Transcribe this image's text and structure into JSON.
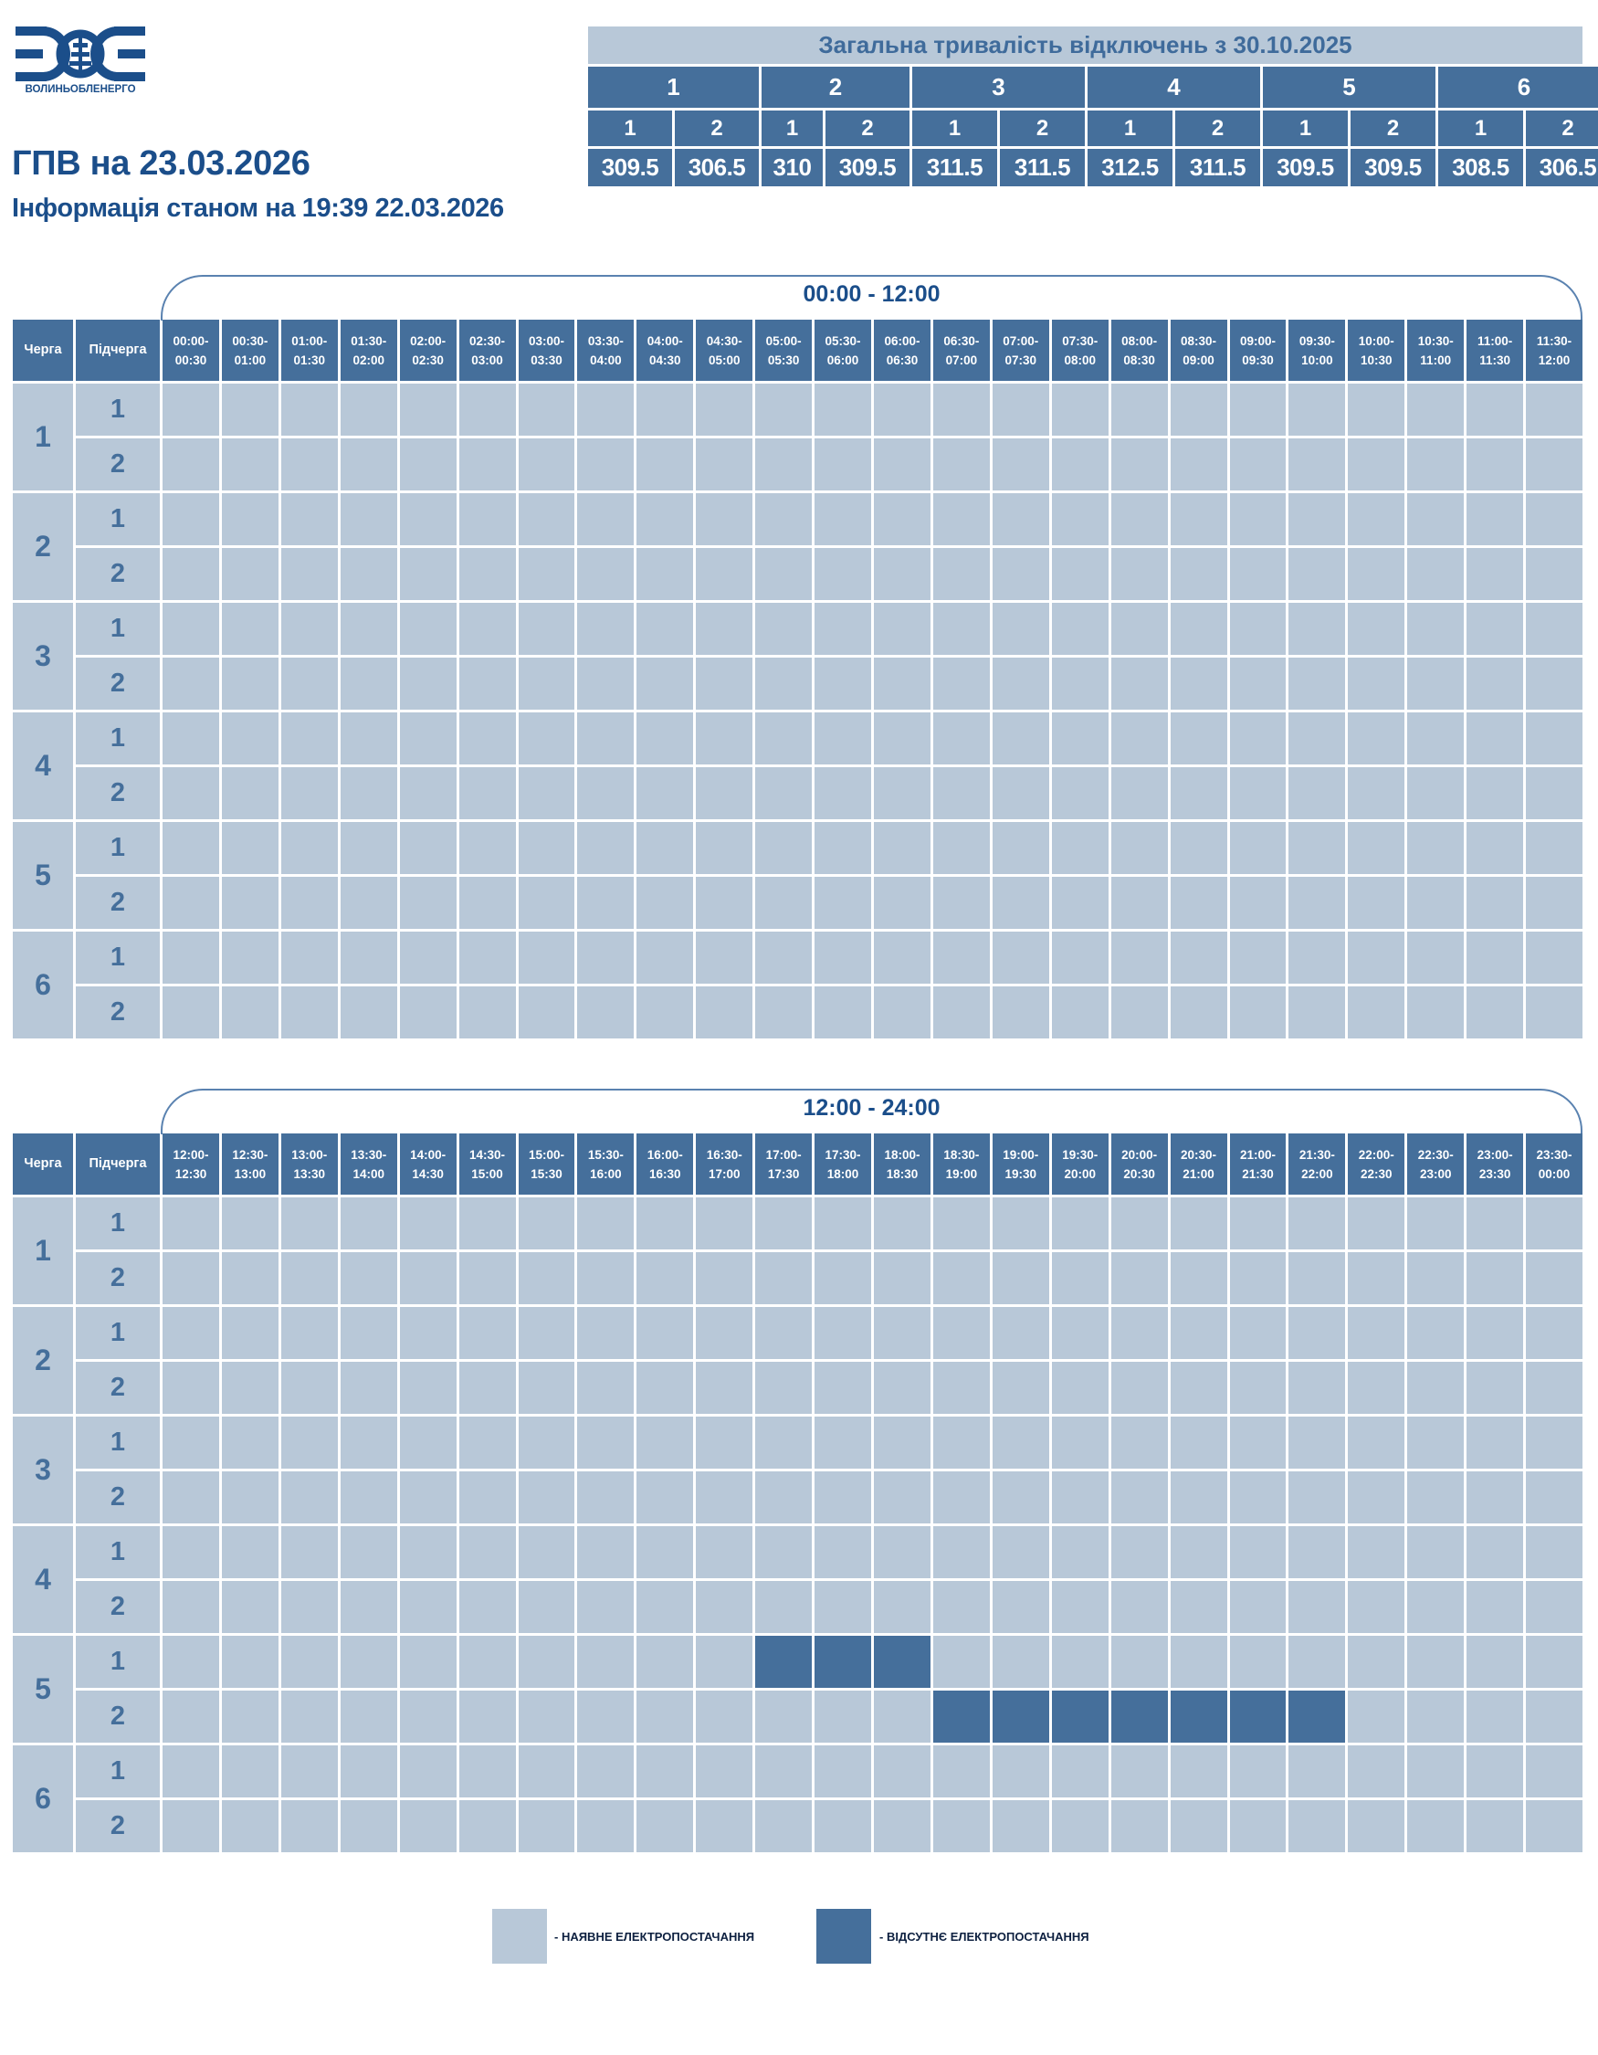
{
  "logo": {
    "text": "ВОЛИНЬОБЛЕНЕРГО"
  },
  "header": {
    "title": "ГПВ на 23.03.2026",
    "subtitle": "Інформація станом на 19:39 22.03.2026"
  },
  "totals": {
    "title": "Загальна тривалість відключень з 30.10.2025",
    "groups": [
      {
        "queue": "1",
        "subs": [
          {
            "sub": "1",
            "value": "309.5"
          },
          {
            "sub": "2",
            "value": "306.5"
          }
        ]
      },
      {
        "queue": "2",
        "subs": [
          {
            "sub": "1",
            "value": "310"
          },
          {
            "sub": "2",
            "value": "309.5"
          }
        ]
      },
      {
        "queue": "3",
        "subs": [
          {
            "sub": "1",
            "value": "311.5"
          },
          {
            "sub": "2",
            "value": "311.5"
          }
        ]
      },
      {
        "queue": "4",
        "subs": [
          {
            "sub": "1",
            "value": "312.5"
          },
          {
            "sub": "2",
            "value": "311.5"
          }
        ]
      },
      {
        "queue": "5",
        "subs": [
          {
            "sub": "1",
            "value": "309.5"
          },
          {
            "sub": "2",
            "value": "309.5"
          }
        ]
      },
      {
        "queue": "6",
        "subs": [
          {
            "sub": "1",
            "value": "308.5"
          },
          {
            "sub": "2",
            "value": "306.5"
          }
        ]
      }
    ]
  },
  "colors": {
    "power_on": "#b8c8d8",
    "power_off": "#456f9b",
    "title": "#1b4e8a"
  },
  "schedule_tables": [
    {
      "range_label": "00:00 - 12:00",
      "queue_header": "Черга",
      "subqueue_header": "Підчерга",
      "slots": [
        "00:00-00:30",
        "00:30-01:00",
        "01:00-01:30",
        "01:30-02:00",
        "02:00-02:30",
        "02:30-03:00",
        "03:00-03:30",
        "03:30-04:00",
        "04:00-04:30",
        "04:30-05:00",
        "05:00-05:30",
        "05:30-06:00",
        "06:00-06:30",
        "06:30-07:00",
        "07:00-07:30",
        "07:30-08:00",
        "08:00-08:30",
        "08:30-09:00",
        "09:00-09:30",
        "09:30-10:00",
        "10:00-10:30",
        "10:30-11:00",
        "11:00-11:30",
        "11:30-12:00"
      ],
      "queues": [
        {
          "queue": "1",
          "subqueues": [
            {
              "sub": "1",
              "outages": []
            },
            {
              "sub": "2",
              "outages": []
            }
          ]
        },
        {
          "queue": "2",
          "subqueues": [
            {
              "sub": "1",
              "outages": []
            },
            {
              "sub": "2",
              "outages": []
            }
          ]
        },
        {
          "queue": "3",
          "subqueues": [
            {
              "sub": "1",
              "outages": []
            },
            {
              "sub": "2",
              "outages": []
            }
          ]
        },
        {
          "queue": "4",
          "subqueues": [
            {
              "sub": "1",
              "outages": []
            },
            {
              "sub": "2",
              "outages": []
            }
          ]
        },
        {
          "queue": "5",
          "subqueues": [
            {
              "sub": "1",
              "outages": []
            },
            {
              "sub": "2",
              "outages": []
            }
          ]
        },
        {
          "queue": "6",
          "subqueues": [
            {
              "sub": "1",
              "outages": []
            },
            {
              "sub": "2",
              "outages": []
            }
          ]
        }
      ]
    },
    {
      "range_label": "12:00 - 24:00",
      "queue_header": "Черга",
      "subqueue_header": "Підчерга",
      "slots": [
        "12:00-12:30",
        "12:30-13:00",
        "13:00-13:30",
        "13:30-14:00",
        "14:00-14:30",
        "14:30-15:00",
        "15:00-15:30",
        "15:30-16:00",
        "16:00-16:30",
        "16:30-17:00",
        "17:00-17:30",
        "17:30-18:00",
        "18:00-18:30",
        "18:30-19:00",
        "19:00-19:30",
        "19:30-20:00",
        "20:00-20:30",
        "20:30-21:00",
        "21:00-21:30",
        "21:30-22:00",
        "22:00-22:30",
        "22:30-23:00",
        "23:00-23:30",
        "23:30-00:00"
      ],
      "queues": [
        {
          "queue": "1",
          "subqueues": [
            {
              "sub": "1",
              "outages": []
            },
            {
              "sub": "2",
              "outages": []
            }
          ]
        },
        {
          "queue": "2",
          "subqueues": [
            {
              "sub": "1",
              "outages": []
            },
            {
              "sub": "2",
              "outages": []
            }
          ]
        },
        {
          "queue": "3",
          "subqueues": [
            {
              "sub": "1",
              "outages": []
            },
            {
              "sub": "2",
              "outages": []
            }
          ]
        },
        {
          "queue": "4",
          "subqueues": [
            {
              "sub": "1",
              "outages": []
            },
            {
              "sub": "2",
              "outages": []
            }
          ]
        },
        {
          "queue": "5",
          "subqueues": [
            {
              "sub": "1",
              "outages": [
                "17:00-17:30",
                "17:30-18:00",
                "18:00-18:30"
              ]
            },
            {
              "sub": "2",
              "outages": [
                "18:30-19:00",
                "19:00-19:30",
                "19:30-20:00",
                "20:00-20:30",
                "20:30-21:00",
                "21:00-21:30",
                "21:30-22:00"
              ]
            }
          ]
        },
        {
          "queue": "6",
          "subqueues": [
            {
              "sub": "1",
              "outages": []
            },
            {
              "sub": "2",
              "outages": []
            }
          ]
        }
      ]
    }
  ],
  "legend": {
    "power_on_label": "- НАЯВНЕ ЕЛЕКТРОПОСТАЧАННЯ",
    "power_off_label": "- ВІДСУТНЄ ЕЛЕКТРОПОСТАЧАННЯ"
  }
}
